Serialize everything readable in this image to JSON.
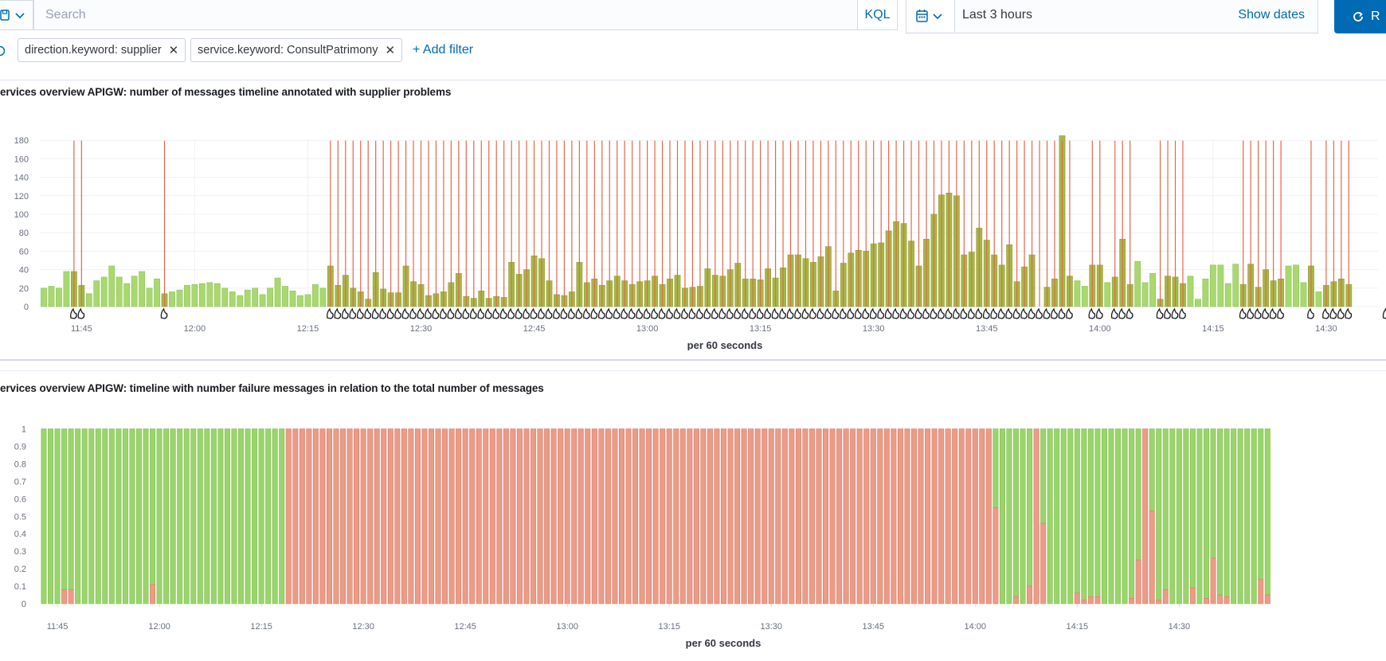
{
  "query_bar": {
    "search_placeholder": "Search",
    "language": "KQL",
    "time_range": "Last 3 hours",
    "show_dates": "Show dates",
    "refresh_label": "R"
  },
  "filters": {
    "pills": [
      "direction.keyword: supplier",
      "service.keyword: ConsultPatrimony"
    ],
    "add_filter": "+ Add filter"
  },
  "icons": [
    "saved-query-icon",
    "chevron-down-icon",
    "calendar-icon",
    "refresh-icon",
    "close-icon",
    "annotation-fire-icon"
  ],
  "colors": {
    "accent": "#006bb4",
    "count_bar": "#a9d86e",
    "count_bar_annotated": "#a5b846",
    "annotation_line": "#e7664c",
    "success_bar": "#9ad46b",
    "failure_bar": "#ec9b87"
  },
  "chart_data": [
    {
      "type": "bar",
      "title": "ervices overview APIGW: number of messages timeline annotated with supplier problems",
      "xlabel": "per 60 seconds",
      "ylabel": "",
      "ylim": [
        0,
        190
      ],
      "y_ticks": [
        0,
        20,
        40,
        60,
        80,
        100,
        120,
        140,
        160,
        180
      ],
      "x_ticks": [
        "11:45",
        "12:00",
        "12:15",
        "12:30",
        "12:45",
        "13:00",
        "13:15",
        "13:30",
        "13:45",
        "14:00",
        "14:15",
        "14:30"
      ],
      "x_start": "11:40",
      "interval_minutes": 1,
      "values": [
        20,
        22,
        20,
        38,
        38,
        23,
        14,
        28,
        32,
        44,
        32,
        25,
        33,
        38,
        20,
        30,
        14,
        16,
        18,
        23,
        24,
        25,
        26,
        25,
        20,
        16,
        12,
        18,
        20,
        13,
        20,
        31,
        22,
        17,
        12,
        13,
        24,
        20,
        44,
        23,
        34,
        20,
        16,
        8,
        37,
        19,
        15,
        15,
        44,
        27,
        24,
        12,
        14,
        16,
        26,
        36,
        11,
        9,
        17,
        9,
        11,
        10,
        48,
        35,
        40,
        55,
        52,
        28,
        13,
        12,
        16,
        48,
        26,
        30,
        23,
        28,
        33,
        28,
        24,
        27,
        28,
        33,
        24,
        30,
        34,
        20,
        21,
        22,
        41,
        34,
        33,
        40,
        47,
        30,
        30,
        29,
        41,
        31,
        42,
        56,
        56,
        52,
        48,
        54,
        65,
        17,
        47,
        58,
        61,
        60,
        68,
        69,
        82,
        92,
        90,
        71,
        44,
        73,
        100,
        121,
        123,
        120,
        56,
        59,
        85,
        72,
        56,
        45,
        67,
        27,
        43,
        56,
        0,
        21,
        30,
        188,
        33,
        28,
        22,
        45,
        45,
        26,
        32,
        73,
        24,
        49,
        26,
        36,
        8,
        33,
        32,
        25,
        33,
        8,
        30,
        45,
        45,
        25,
        46,
        24,
        46,
        21,
        40,
        28,
        30,
        44,
        45,
        26,
        44,
        16,
        23,
        27,
        30,
        24
      ],
      "annotations": [
        "11:44",
        "11:45",
        "11:56",
        "12:18",
        "12:19",
        "12:20",
        "12:21",
        "12:22",
        "12:23",
        "12:24",
        "12:25",
        "12:26",
        "12:27",
        "12:28",
        "12:29",
        "12:30",
        "12:31",
        "12:32",
        "12:33",
        "12:34",
        "12:35",
        "12:36",
        "12:37",
        "12:38",
        "12:39",
        "12:40",
        "12:41",
        "12:42",
        "12:43",
        "12:44",
        "12:45",
        "12:46",
        "12:47",
        "12:48",
        "12:49",
        "12:50",
        "12:51",
        "12:52",
        "12:53",
        "12:54",
        "12:55",
        "12:56",
        "12:57",
        "12:58",
        "12:59",
        "13:00",
        "13:01",
        "13:02",
        "13:03",
        "13:04",
        "13:05",
        "13:06",
        "13:07",
        "13:08",
        "13:09",
        "13:10",
        "13:11",
        "13:12",
        "13:13",
        "13:14",
        "13:15",
        "13:16",
        "13:17",
        "13:18",
        "13:19",
        "13:20",
        "13:21",
        "13:22",
        "13:23",
        "13:24",
        "13:25",
        "13:26",
        "13:27",
        "13:28",
        "13:29",
        "13:30",
        "13:31",
        "13:32",
        "13:33",
        "13:34",
        "13:35",
        "13:36",
        "13:37",
        "13:38",
        "13:39",
        "13:40",
        "13:41",
        "13:42",
        "13:43",
        "13:44",
        "13:45",
        "13:46",
        "13:47",
        "13:48",
        "13:49",
        "13:50",
        "13:51",
        "13:52",
        "13:53",
        "13:54",
        "13:55",
        "13:56",
        "13:59",
        "14:00",
        "14:02",
        "14:03",
        "14:04",
        "14:08",
        "14:09",
        "14:10",
        "14:11",
        "14:19",
        "14:20",
        "14:21",
        "14:22",
        "14:23",
        "14:24",
        "14:28",
        "14:30",
        "14:31",
        "14:32",
        "14:33",
        "14:38",
        "14:39"
      ],
      "grid": true
    },
    {
      "type": "bar",
      "stacked": true,
      "title": "ervices overview APIGW: timeline with number failure messages in relation to the total number of messages",
      "xlabel": "per 60 seconds",
      "ylabel": "",
      "ylim": [
        0,
        1
      ],
      "y_ticks": [
        "0",
        "0.1",
        "0.2",
        "0.3",
        "0.4",
        "0.5",
        "0.6",
        "0.7",
        "0.8",
        "0.9",
        "1"
      ],
      "x_ticks": [
        "11:45",
        "12:00",
        "12:15",
        "12:30",
        "12:45",
        "13:00",
        "13:15",
        "13:30",
        "13:45",
        "14:00",
        "14:15",
        "14:30"
      ],
      "x_start": "11:43",
      "interval_minutes": 1,
      "failure_ratio": [
        0,
        0,
        0,
        0.08,
        0.08,
        0,
        0,
        0,
        0,
        0,
        0,
        0,
        0,
        0,
        0,
        0,
        0.11,
        0,
        0,
        0,
        0,
        0,
        0,
        0,
        0,
        0,
        0,
        0,
        0,
        0,
        0,
        0,
        0,
        0,
        0,
        0,
        1,
        1,
        1,
        1,
        1,
        1,
        1,
        1,
        1,
        1,
        1,
        1,
        1,
        1,
        1,
        1,
        1,
        1,
        1,
        1,
        1,
        1,
        1,
        1,
        1,
        1,
        1,
        1,
        1,
        1,
        1,
        1,
        1,
        1,
        1,
        1,
        1,
        1,
        1,
        1,
        1,
        1,
        1,
        1,
        1,
        1,
        1,
        1,
        1,
        1,
        1,
        1,
        1,
        1,
        1,
        1,
        1,
        1,
        1,
        1,
        1,
        1,
        1,
        1,
        1,
        1,
        1,
        1,
        1,
        1,
        1,
        1,
        1,
        1,
        1,
        1,
        1,
        1,
        1,
        1,
        1,
        1,
        1,
        1,
        1,
        1,
        1,
        1,
        1,
        1,
        1,
        1,
        1,
        1,
        1,
        1,
        1,
        1,
        1,
        1,
        1,
        1,
        1,
        1,
        0.55,
        0,
        0,
        0.04,
        0,
        0.1,
        1,
        0.46,
        0,
        0,
        0,
        0,
        0.06,
        0.02,
        0.04,
        0.04,
        0,
        0,
        0,
        0,
        0.03,
        0.25,
        1,
        0.53,
        0.02,
        0.08,
        0,
        0,
        0,
        0.09,
        0,
        0.03,
        0.26,
        0.05,
        0.04,
        0,
        0,
        0,
        0,
        0.14,
        0.05
      ],
      "series": [
        {
          "name": "success"
        },
        {
          "name": "failure"
        }
      ],
      "grid": false
    }
  ]
}
